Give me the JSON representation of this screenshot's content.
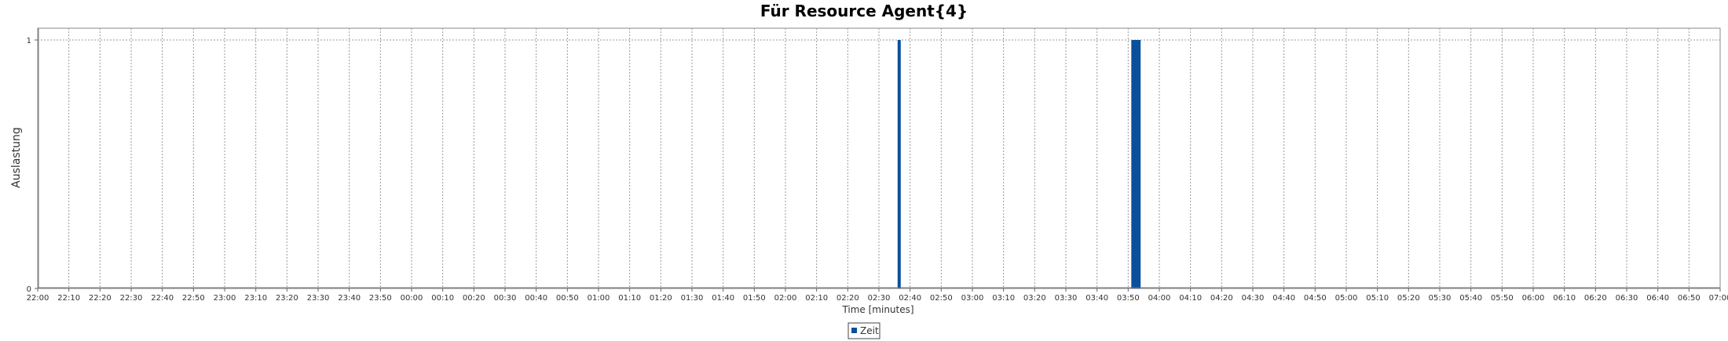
{
  "chart_data": {
    "type": "bar",
    "title": "Für Resource Agent{4}",
    "xlabel": "Time [minutes]",
    "ylabel": "Auslastung",
    "x_ticks": [
      "22:00",
      "22:10",
      "22:20",
      "22:30",
      "22:40",
      "22:50",
      "23:00",
      "23:10",
      "23:20",
      "23:30",
      "23:40",
      "23:50",
      "00:00",
      "00:10",
      "00:20",
      "00:30",
      "00:40",
      "00:50",
      "01:00",
      "01:10",
      "01:20",
      "01:30",
      "01:40",
      "01:50",
      "02:00",
      "02:10",
      "02:20",
      "02:30",
      "02:40",
      "02:50",
      "03:00",
      "03:10",
      "03:20",
      "03:30",
      "03:40",
      "03:50",
      "04:00",
      "04:10",
      "04:20",
      "04:30",
      "04:40",
      "04:50",
      "05:00",
      "05:10",
      "05:20",
      "05:30",
      "05:40",
      "05:50",
      "06:00",
      "06:10",
      "06:20",
      "06:30",
      "06:40",
      "06:50",
      "07:00"
    ],
    "xlim": [
      "22:00",
      "07:00"
    ],
    "y_ticks": [
      "0",
      "1"
    ],
    "ylim": [
      0,
      1
    ],
    "grid": true,
    "legend_position": "bottom-center",
    "series": [
      {
        "name": "Zeit",
        "color": "#0a4f9c",
        "bars": [
          {
            "start": "02:36",
            "end": "02:37",
            "value": 1
          },
          {
            "start": "03:51",
            "end": "03:54",
            "value": 1
          }
        ]
      }
    ]
  }
}
